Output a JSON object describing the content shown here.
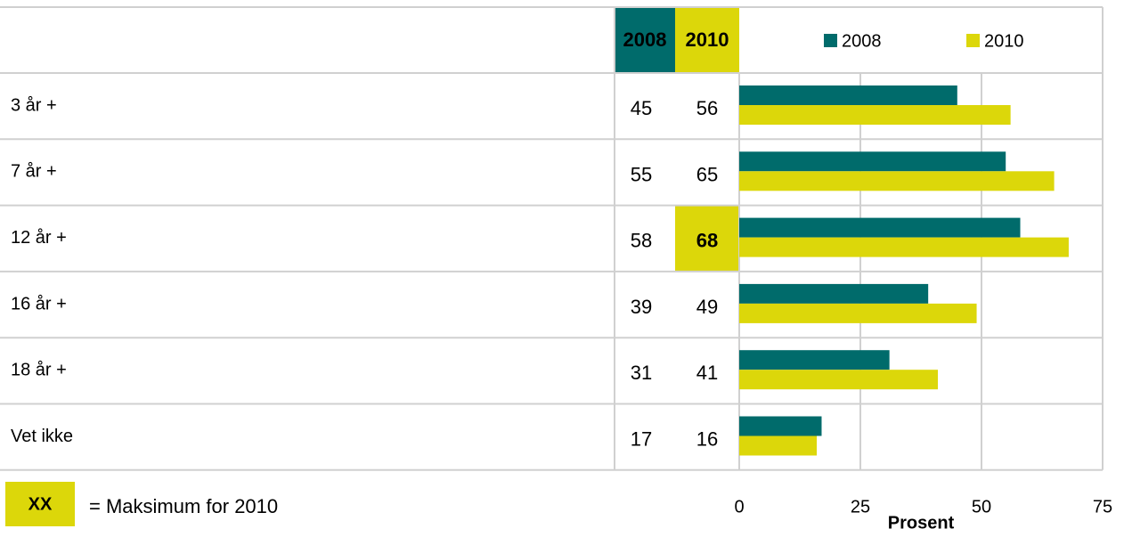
{
  "chart_data": {
    "type": "bar",
    "orientation": "horizontal",
    "categories": [
      "3 år +",
      "7 år +",
      "12 år +",
      "16 år +",
      "18 år +",
      "Vet ikke"
    ],
    "series": [
      {
        "name": "2008",
        "color": "#006b6b",
        "values": [
          45,
          55,
          58,
          39,
          31,
          17
        ]
      },
      {
        "name": "2010",
        "color": "#dcd70a",
        "values": [
          56,
          65,
          68,
          49,
          41,
          16
        ]
      }
    ],
    "xlim": [
      0,
      75
    ],
    "xticks": [
      0,
      25,
      50,
      75
    ],
    "xlabel": "Prosent",
    "grid": true,
    "legend": "top",
    "key": {
      "marker": "XX",
      "text": "= Maksimum for 2010"
    }
  }
}
